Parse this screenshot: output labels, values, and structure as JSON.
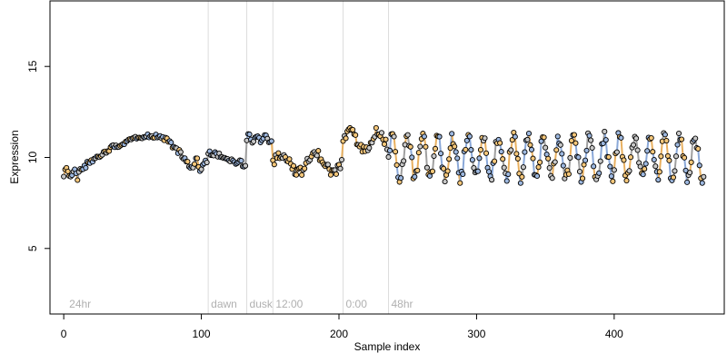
{
  "chart_data": {
    "type": "scatter",
    "title": "",
    "xlabel": "Sample index",
    "ylabel": "Expression",
    "xlim": [
      -10,
      480
    ],
    "ylim": [
      1.4,
      18.6
    ],
    "x_ticks": [
      0,
      100,
      200,
      300,
      400
    ],
    "y_ticks": [
      5,
      10,
      15
    ],
    "grid": false,
    "legend": "none",
    "colors": {
      "point_fill_light": "#f5c77a",
      "point_fill_dark": "#9db8e0",
      "point_fill_neutral": "#c8c8c8",
      "point_stroke": "#000000",
      "line_light": "#e8b060",
      "line_dark": "#8aa8d8",
      "line_neutral": "#a0a0a0",
      "vline": "#dddddd",
      "annotation": "#b0b0b0"
    },
    "vlines": [
      {
        "x": 105,
        "label": "dawn"
      },
      {
        "x": 133,
        "label": "dusk"
      },
      {
        "x": 152,
        "label": "12:00"
      },
      {
        "x": 203,
        "label": "0:00"
      },
      {
        "x": 236,
        "label": "48hr"
      }
    ],
    "annotations": [
      {
        "x": 2,
        "label": "24hr"
      }
    ],
    "series": [
      {
        "n_points": 465,
        "segments": [
          {
            "x_start": 0,
            "x_end": 10,
            "shape": "flat",
            "base": 9.1,
            "amp": 0.3,
            "period": 6,
            "noise": 0.15,
            "phase": "mixed"
          },
          {
            "x_start": 11,
            "x_end": 94,
            "shape": "hump",
            "base": 9.3,
            "peak": 11.2,
            "peak_x": 65,
            "noise": 0.15,
            "phase": "mixed"
          },
          {
            "x_start": 95,
            "x_end": 104,
            "shape": "flat",
            "base": 9.6,
            "amp": 0.25,
            "period": 6,
            "noise": 0.15,
            "phase": "mixed"
          },
          {
            "x_start": 105,
            "x_end": 132,
            "shape": "slope",
            "from": 10.3,
            "to": 9.6,
            "noise": 0.15,
            "phase": "dark"
          },
          {
            "x_start": 133,
            "x_end": 151,
            "shape": "flat",
            "base": 11.0,
            "amp": 0.2,
            "period": 6,
            "noise": 0.12,
            "phase": "dark"
          },
          {
            "x_start": 152,
            "x_end": 202,
            "shape": "wave",
            "base": 9.7,
            "amp": 0.5,
            "period": 25,
            "noise": 0.25,
            "phase": "light"
          },
          {
            "x_start": 203,
            "x_end": 235,
            "shape": "wave",
            "base": 10.9,
            "amp": 0.5,
            "period": 20,
            "noise": 0.25,
            "phase": "light"
          },
          {
            "x_start": 236,
            "x_end": 465,
            "shape": "wave",
            "base": 10.0,
            "amp": 1.1,
            "period": 11,
            "noise": 0.35,
            "phase": "mixed"
          }
        ]
      }
    ]
  }
}
